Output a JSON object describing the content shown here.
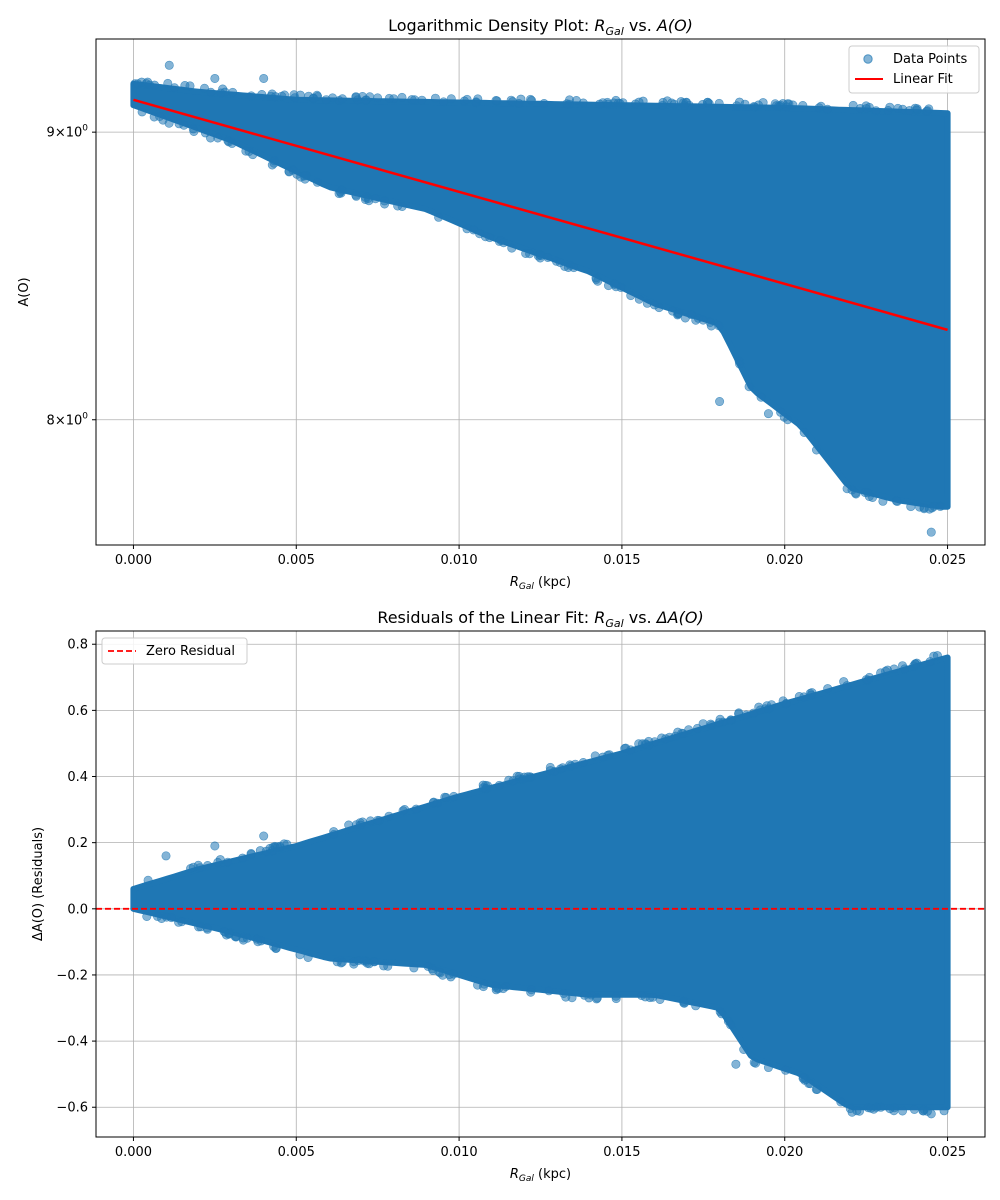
{
  "chart_data": [
    {
      "type": "scatter",
      "title": "Logarithmic Density Plot: R_Gal vs. A(O)",
      "title_parts": {
        "prefix": "Logarithmic Density Plot: ",
        "x_main": "R",
        "x_sub": "Gal",
        "mid": " vs. ",
        "y_main": "A(O)",
        "suffix": ""
      },
      "xlabel": {
        "main": "R",
        "sub": "Gal",
        "rest": " (kpc)"
      },
      "ylabel": "A(O)",
      "yscale": "log",
      "xlim": [
        -0.00115,
        0.02615
      ],
      "ylim": [
        7.6,
        9.35
      ],
      "x_ticks": [
        0.0,
        0.005,
        0.01,
        0.015,
        0.02,
        0.025
      ],
      "x_tick_labels": [
        "0.000",
        "0.005",
        "0.010",
        "0.015",
        "0.020",
        "0.025"
      ],
      "y_ticks": [
        8,
        9
      ],
      "y_tick_labels": [
        {
          "base": "8",
          "x": "×10",
          "exp": "0"
        },
        {
          "base": "9",
          "x": "×10",
          "exp": "0"
        }
      ],
      "grid": true,
      "legend": {
        "placement": "top-right",
        "entries": [
          "Data Points",
          "Linear Fit"
        ]
      },
      "series": [
        {
          "name": "Data Points",
          "kind": "scatter",
          "color": "#1f77b4",
          "alpha": 0.55,
          "upper_envelope": [
            [
              0.0,
              9.18
            ],
            [
              0.002,
              9.15
            ],
            [
              0.005,
              9.12
            ],
            [
              0.01,
              9.11
            ],
            [
              0.015,
              9.1
            ],
            [
              0.02,
              9.09
            ],
            [
              0.025,
              9.07
            ]
          ],
          "lower_envelope": [
            [
              0.0,
              9.1
            ],
            [
              0.003,
              8.97
            ],
            [
              0.006,
              8.8
            ],
            [
              0.009,
              8.72
            ],
            [
              0.011,
              8.62
            ],
            [
              0.014,
              8.5
            ],
            [
              0.016,
              8.39
            ],
            [
              0.018,
              8.32
            ],
            [
              0.019,
              8.1
            ],
            [
              0.0205,
              7.98
            ],
            [
              0.022,
              7.78
            ],
            [
              0.0235,
              7.74
            ],
            [
              0.0248,
              7.72
            ]
          ],
          "outliers": [
            [
              0.0011,
              9.25
            ],
            [
              0.0025,
              9.2
            ],
            [
              0.004,
              9.2
            ],
            [
              0.0245,
              7.64
            ],
            [
              0.0195,
              8.02
            ],
            [
              0.018,
              8.06
            ]
          ]
        },
        {
          "name": "Linear Fit",
          "kind": "line",
          "color": "#ff0000",
          "x": [
            0.0,
            0.025
          ],
          "y": [
            9.12,
            8.3
          ]
        }
      ]
    },
    {
      "type": "scatter",
      "title": "Residuals of the Linear Fit: R_Gal vs. ΔA(O)",
      "title_parts": {
        "prefix": "Residuals of the Linear Fit: ",
        "x_main": "R",
        "x_sub": "Gal",
        "mid": " vs. ",
        "y_main": "ΔA(O)",
        "suffix": ""
      },
      "xlabel": {
        "main": "R",
        "sub": "Gal",
        "rest": " (kpc)"
      },
      "ylabel": "ΔA(O) (Residuals)",
      "yscale": "linear",
      "xlim": [
        -0.00115,
        0.02615
      ],
      "ylim": [
        -0.69,
        0.84
      ],
      "x_ticks": [
        0.0,
        0.005,
        0.01,
        0.015,
        0.02,
        0.025
      ],
      "x_tick_labels": [
        "0.000",
        "0.005",
        "0.010",
        "0.015",
        "0.020",
        "0.025"
      ],
      "y_ticks": [
        -0.6,
        -0.4,
        -0.2,
        0.0,
        0.2,
        0.4,
        0.6,
        0.8
      ],
      "y_tick_labels": [
        "−0.6",
        "−0.4",
        "−0.2",
        "0.0",
        "0.2",
        "0.4",
        "0.6",
        "0.8"
      ],
      "grid": true,
      "legend": {
        "placement": "top-left",
        "entries": [
          "Zero Residual"
        ]
      },
      "series": [
        {
          "name": "Residuals",
          "kind": "scatter",
          "color": "#1f77b4",
          "alpha": 0.55,
          "upper_envelope": [
            [
              0.0,
              0.06
            ],
            [
              0.002,
              0.12
            ],
            [
              0.005,
              0.19
            ],
            [
              0.01,
              0.34
            ],
            [
              0.015,
              0.47
            ],
            [
              0.02,
              0.62
            ],
            [
              0.025,
              0.76
            ]
          ],
          "lower_envelope": [
            [
              0.0,
              0.0
            ],
            [
              0.003,
              -0.07
            ],
            [
              0.006,
              -0.15
            ],
            [
              0.009,
              -0.17
            ],
            [
              0.011,
              -0.23
            ],
            [
              0.014,
              -0.26
            ],
            [
              0.016,
              -0.26
            ],
            [
              0.018,
              -0.3
            ],
            [
              0.019,
              -0.45
            ],
            [
              0.0205,
              -0.5
            ],
            [
              0.022,
              -0.6
            ],
            [
              0.0235,
              -0.6
            ],
            [
              0.0248,
              -0.6
            ]
          ],
          "outliers": [
            [
              0.001,
              0.16
            ],
            [
              0.0025,
              0.19
            ],
            [
              0.004,
              0.22
            ],
            [
              0.0245,
              -0.62
            ],
            [
              0.0185,
              -0.47
            ],
            [
              0.0195,
              -0.48
            ]
          ]
        },
        {
          "name": "Zero Residual",
          "kind": "hline",
          "color": "#ff0000",
          "dash": true,
          "y": 0.0
        }
      ]
    }
  ]
}
